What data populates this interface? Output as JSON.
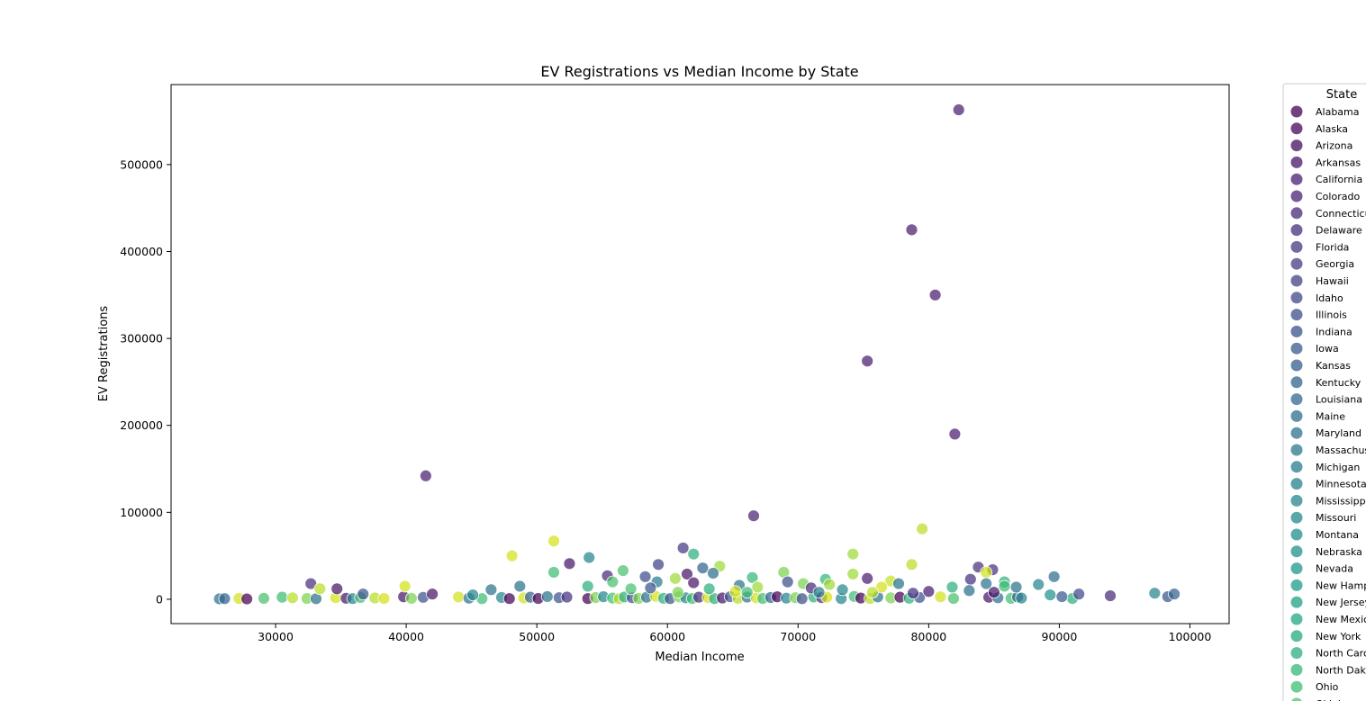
{
  "chart_data": {
    "type": "scatter",
    "title": "EV Registrations vs Median Income by State",
    "xlabel": "Median Income",
    "ylabel": "EV Registrations",
    "xlim": [
      22000,
      103000
    ],
    "ylim": [
      -28000,
      592000
    ],
    "xticks": [
      30000,
      40000,
      50000,
      60000,
      70000,
      80000,
      90000,
      100000
    ],
    "yticks": [
      0,
      100000,
      200000,
      300000,
      400000,
      500000
    ],
    "grid": false,
    "legend": {
      "title": "State",
      "placement": "outside-right",
      "entries": [
        {
          "label": "Alabama",
          "color": "#440154"
        },
        {
          "label": "Alaska",
          "color": "#46075b"
        },
        {
          "label": "Arizona",
          "color": "#470e61"
        },
        {
          "label": "Arkansas",
          "color": "#481668"
        },
        {
          "label": "California",
          "color": "#481d6f"
        },
        {
          "label": "Colorado",
          "color": "#482374"
        },
        {
          "label": "Connecticut",
          "color": "#472a7a"
        },
        {
          "label": "Delaware",
          "color": "#46307e"
        },
        {
          "label": "Florida",
          "color": "#453781"
        },
        {
          "label": "Georgia",
          "color": "#433d84"
        },
        {
          "label": "Hawaii",
          "color": "#414287"
        },
        {
          "label": "Idaho",
          "color": "#3f4889"
        },
        {
          "label": "Illinois",
          "color": "#3d4e8a"
        },
        {
          "label": "Indiana",
          "color": "#3a538b"
        },
        {
          "label": "Iowa",
          "color": "#38598c"
        },
        {
          "label": "Kansas",
          "color": "#355e8d"
        },
        {
          "label": "Kentucky",
          "color": "#33638d"
        },
        {
          "label": "Louisiana",
          "color": "#31688e"
        },
        {
          "label": "Maine",
          "color": "#2e6d8e"
        },
        {
          "label": "Maryland",
          "color": "#2c728e"
        },
        {
          "label": "Massachusetts",
          "color": "#2a778e"
        },
        {
          "label": "Michigan",
          "color": "#297b8e"
        },
        {
          "label": "Minnesota",
          "color": "#27808e"
        },
        {
          "label": "Mississippi",
          "color": "#25858e"
        },
        {
          "label": "Missouri",
          "color": "#23898e"
        },
        {
          "label": "Montana",
          "color": "#228d8d"
        },
        {
          "label": "Nebraska",
          "color": "#20928c"
        },
        {
          "label": "Nevada",
          "color": "#1f978b"
        },
        {
          "label": "New Hampshire",
          "color": "#1f9c89"
        },
        {
          "label": "New Jersey",
          "color": "#20a086"
        },
        {
          "label": "New Mexico",
          "color": "#22a584"
        },
        {
          "label": "New York",
          "color": "#26a981"
        },
        {
          "label": "North Carolina",
          "color": "#2cae7d"
        },
        {
          "label": "North Dakota",
          "color": "#35b779"
        },
        {
          "label": "Ohio",
          "color": "#3fbc73"
        },
        {
          "label": "Oklahoma",
          "color": "#4ac16d"
        }
      ]
    },
    "highlight_points": [
      {
        "x": 82300,
        "y": 563000,
        "color": "#481d6f"
      },
      {
        "x": 78700,
        "y": 425000,
        "color": "#481d6f"
      },
      {
        "x": 80500,
        "y": 350000,
        "color": "#481d6f"
      },
      {
        "x": 75300,
        "y": 274000,
        "color": "#481d6f"
      },
      {
        "x": 82000,
        "y": 190000,
        "color": "#481d6f"
      },
      {
        "x": 41500,
        "y": 142000,
        "color": "#481d6f"
      },
      {
        "x": 66600,
        "y": 96000,
        "color": "#482374"
      },
      {
        "x": 79500,
        "y": 81000,
        "color": "#bade28"
      },
      {
        "x": 51300,
        "y": 67000,
        "color": "#d2e21b"
      },
      {
        "x": 61200,
        "y": 59000,
        "color": "#453781"
      },
      {
        "x": 74200,
        "y": 52000,
        "color": "#a0da39"
      },
      {
        "x": 62000,
        "y": 52000,
        "color": "#2cae7d"
      },
      {
        "x": 54000,
        "y": 48000,
        "color": "#25858e"
      },
      {
        "x": 48100,
        "y": 50000,
        "color": "#d2e21b"
      },
      {
        "x": 52500,
        "y": 41000,
        "color": "#481668"
      },
      {
        "x": 59300,
        "y": 40000,
        "color": "#414287"
      },
      {
        "x": 64000,
        "y": 38000,
        "color": "#a0da39"
      },
      {
        "x": 78700,
        "y": 40000,
        "color": "#bade28"
      },
      {
        "x": 83800,
        "y": 37000,
        "color": "#46307e"
      },
      {
        "x": 84900,
        "y": 34000,
        "color": "#46307e"
      },
      {
        "x": 56600,
        "y": 33000,
        "color": "#4ac16d"
      },
      {
        "x": 62700,
        "y": 36000,
        "color": "#33638d"
      },
      {
        "x": 51300,
        "y": 31000,
        "color": "#3fbc73"
      },
      {
        "x": 63500,
        "y": 30000,
        "color": "#2e6d8e"
      },
      {
        "x": 68900,
        "y": 31000,
        "color": "#7ad151"
      },
      {
        "x": 74200,
        "y": 29000,
        "color": "#a0da39"
      },
      {
        "x": 84400,
        "y": 31000,
        "color": "#d2e21b"
      },
      {
        "x": 55400,
        "y": 27000,
        "color": "#472a7a"
      },
      {
        "x": 61500,
        "y": 29000,
        "color": "#481668"
      },
      {
        "x": 58300,
        "y": 26000,
        "color": "#3d4e8a"
      },
      {
        "x": 66500,
        "y": 25000,
        "color": "#35b779"
      },
      {
        "x": 75300,
        "y": 24000,
        "color": "#481d6f"
      },
      {
        "x": 83200,
        "y": 23000,
        "color": "#46307e"
      },
      {
        "x": 89600,
        "y": 26000,
        "color": "#2e6d8e"
      },
      {
        "x": 60600,
        "y": 24000,
        "color": "#a0da39"
      },
      {
        "x": 72100,
        "y": 23000,
        "color": "#35b779"
      },
      {
        "x": 77100,
        "y": 21000,
        "color": "#c8e020"
      },
      {
        "x": 55800,
        "y": 20000,
        "color": "#4ac16d"
      },
      {
        "x": 59200,
        "y": 20000,
        "color": "#297b8e"
      },
      {
        "x": 62000,
        "y": 19000,
        "color": "#481668"
      },
      {
        "x": 69200,
        "y": 20000,
        "color": "#3d4e8a"
      },
      {
        "x": 72400,
        "y": 17000,
        "color": "#a0da39"
      },
      {
        "x": 77700,
        "y": 18000,
        "color": "#2c728e"
      },
      {
        "x": 84400,
        "y": 18000,
        "color": "#2c728e"
      },
      {
        "x": 85800,
        "y": 20000,
        "color": "#2cae7d"
      },
      {
        "x": 88400,
        "y": 17000,
        "color": "#25858e"
      },
      {
        "x": 32700,
        "y": 18000,
        "color": "#46307e"
      },
      {
        "x": 48700,
        "y": 15000,
        "color": "#2c728e"
      },
      {
        "x": 39900,
        "y": 15000,
        "color": "#d2e21b"
      },
      {
        "x": 53900,
        "y": 15000,
        "color": "#2cae7d"
      },
      {
        "x": 65500,
        "y": 16000,
        "color": "#2c728e"
      },
      {
        "x": 70400,
        "y": 18000,
        "color": "#7ad151"
      },
      {
        "x": 81800,
        "y": 14000,
        "color": "#2cae7d"
      },
      {
        "x": 85800,
        "y": 15000,
        "color": "#3fbc73"
      },
      {
        "x": 86700,
        "y": 14000,
        "color": "#2c728e"
      },
      {
        "x": 34700,
        "y": 12000,
        "color": "#481668"
      },
      {
        "x": 33400,
        "y": 12000,
        "color": "#bade28"
      },
      {
        "x": 46500,
        "y": 11000,
        "color": "#2c728e"
      },
      {
        "x": 57200,
        "y": 12000,
        "color": "#4ac16d"
      },
      {
        "x": 58700,
        "y": 13000,
        "color": "#3a538b"
      },
      {
        "x": 63200,
        "y": 12000,
        "color": "#2cae7d"
      },
      {
        "x": 66900,
        "y": 14000,
        "color": "#a0da39"
      },
      {
        "x": 71000,
        "y": 13000,
        "color": "#472a7a"
      },
      {
        "x": 73400,
        "y": 11000,
        "color": "#25858e"
      },
      {
        "x": 76400,
        "y": 14000,
        "color": "#d2e21b"
      },
      {
        "x": 80000,
        "y": 9000,
        "color": "#481d6f"
      },
      {
        "x": 83100,
        "y": 10000,
        "color": "#2e6d8e"
      },
      {
        "x": 85000,
        "y": 8000,
        "color": "#481668"
      },
      {
        "x": 65200,
        "y": 9000,
        "color": "#d2e21b"
      },
      {
        "x": 60800,
        "y": 8000,
        "color": "#7ad151"
      },
      {
        "x": 66100,
        "y": 8000,
        "color": "#3fbc73"
      },
      {
        "x": 71600,
        "y": 8000,
        "color": "#297b8e"
      },
      {
        "x": 75700,
        "y": 8000,
        "color": "#bade28"
      },
      {
        "x": 78800,
        "y": 7000,
        "color": "#46307e"
      },
      {
        "x": 97300,
        "y": 7000,
        "color": "#25858e"
      },
      {
        "x": 98800,
        "y": 6000,
        "color": "#33638d"
      },
      {
        "x": 91500,
        "y": 6000,
        "color": "#3f4889"
      },
      {
        "x": 93900,
        "y": 4000,
        "color": "#472a7a"
      },
      {
        "x": 36700,
        "y": 6000,
        "color": "#3a538b"
      },
      {
        "x": 42000,
        "y": 6000,
        "color": "#481668"
      },
      {
        "x": 45100,
        "y": 5000,
        "color": "#25858e"
      },
      {
        "x": 89300,
        "y": 5000,
        "color": "#20928c"
      },
      {
        "x": 90200,
        "y": 3000,
        "color": "#38598c"
      }
    ],
    "base_cluster_x": [
      25700,
      26100,
      27200,
      27800,
      29100,
      30500,
      31300,
      32400,
      33100,
      34600,
      35400,
      35900,
      36500,
      37600,
      38300,
      39800,
      40400,
      41300,
      44000,
      44800,
      45800,
      47300,
      47900,
      49000,
      49500,
      50100,
      50800,
      51700,
      52300,
      53900,
      54500,
      55100,
      55800,
      56300,
      56700,
      57300,
      57800,
      58400,
      59100,
      59700,
      60200,
      60900,
      61400,
      61900,
      62400,
      63100,
      63600,
      64200,
      64800,
      65400,
      66100,
      66800,
      67300,
      67900,
      68400,
      69100,
      69800,
      70300,
      71200,
      71800,
      72200,
      73300,
      74300,
      74800,
      75500,
      76100,
      77100,
      77800,
      78500,
      79300,
      80900,
      81900,
      84600,
      85300,
      86300,
      86800,
      87100,
      91000,
      98300
    ],
    "base_cluster_y": [
      500,
      700,
      900,
      400,
      1100,
      2400,
      1700,
      900,
      600,
      1900,
      1200,
      800,
      2100,
      1500,
      900,
      2800,
      1100,
      2200,
      2600,
      1300,
      700,
      2100,
      800,
      1600,
      2400,
      900,
      3100,
      1800,
      2500,
      800,
      2000,
      2900,
      1400,
      700,
      2600,
      1800,
      1000,
      2300,
      3400,
      1200,
      800,
      2700,
      1700,
      900,
      2400,
      1900,
      800,
      1500,
      3000,
      1100,
      2500,
      1700,
      900,
      2100,
      2800,
      1300,
      1800,
      700,
      2600,
      1900,
      2400,
      800,
      3200,
      1400,
      900,
      2700,
      1600,
      2400,
      1200,
      2100,
      2800,
      900,
      2300,
      1700,
      1100,
      2600,
      1400,
      900,
      3000
    ],
    "base_cluster_colors": [
      "#2c728e",
      "#33638d",
      "#d2e21b",
      "#440154",
      "#4ac16d",
      "#3fbc73",
      "#bade28",
      "#7ad151",
      "#2c728e",
      "#d2e21b",
      "#481668",
      "#25858e",
      "#3fbc73",
      "#bade28",
      "#d2e21b",
      "#481668",
      "#7ad151",
      "#3a538b",
      "#d2e21b",
      "#2c728e",
      "#3fbc73",
      "#25858e",
      "#440154",
      "#d2e21b",
      "#33638d",
      "#440154",
      "#2c728e",
      "#3a538b",
      "#46307e",
      "#440154",
      "#7ad151",
      "#25858e",
      "#3fbc73",
      "#bade28",
      "#2cae7d",
      "#3d4e8a",
      "#7ad151",
      "#2c728e",
      "#d2e21b",
      "#2cae7d",
      "#3a538b",
      "#7ad151",
      "#25858e",
      "#3fbc73",
      "#472a7a",
      "#d2e21b",
      "#2cae7d",
      "#481668",
      "#3a538b",
      "#bade28",
      "#2c728e",
      "#d2e21b",
      "#3fbc73",
      "#33638d",
      "#440154",
      "#25858e",
      "#7ad151",
      "#3d4e8a",
      "#2cae7d",
      "#472a7a",
      "#d2e21b",
      "#25858e",
      "#3fbc73",
      "#440154",
      "#bade28",
      "#2c728e",
      "#7ad151",
      "#440154",
      "#2cae7d",
      "#3a538b",
      "#d2e21b",
      "#4ac16d",
      "#481668",
      "#2c728e",
      "#3fbc73",
      "#33638d",
      "#25858e",
      "#2cae7d",
      "#3a538b"
    ]
  }
}
